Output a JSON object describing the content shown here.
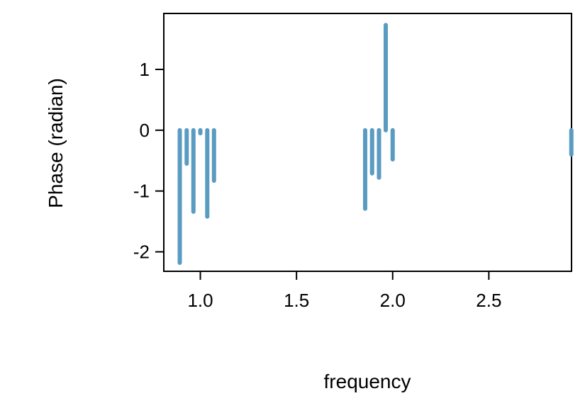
{
  "chart_data": {
    "type": "bar",
    "title": "",
    "xlabel": "frequency",
    "ylabel": "Phase (radian)",
    "xlim": [
      0.81,
      2.93
    ],
    "ylim": [
      -2.32,
      1.92
    ],
    "x_ticks": [
      1.0,
      1.5,
      2.0,
      2.5
    ],
    "x_tick_labels": [
      "1.0",
      "1.5",
      "2.0",
      "2.5"
    ],
    "y_ticks": [
      1,
      0,
      -1,
      -2
    ],
    "y_tick_labels": [
      "1",
      "0",
      "-1",
      "-2"
    ],
    "grid": false,
    "legend": "none",
    "series": [
      {
        "x": [
          0.893,
          0.929,
          0.964,
          1.0,
          1.036,
          1.071,
          1.857,
          1.893,
          1.929,
          1.964,
          2.0,
          2.929
        ],
        "values": [
          -2.18,
          -0.55,
          -1.34,
          -0.05,
          -1.42,
          -0.83,
          -1.29,
          -0.71,
          -0.78,
          1.73,
          -0.48,
          -0.4
        ]
      }
    ],
    "colors": {
      "bar": "#5a9bc2",
      "axis": "#000000"
    }
  }
}
